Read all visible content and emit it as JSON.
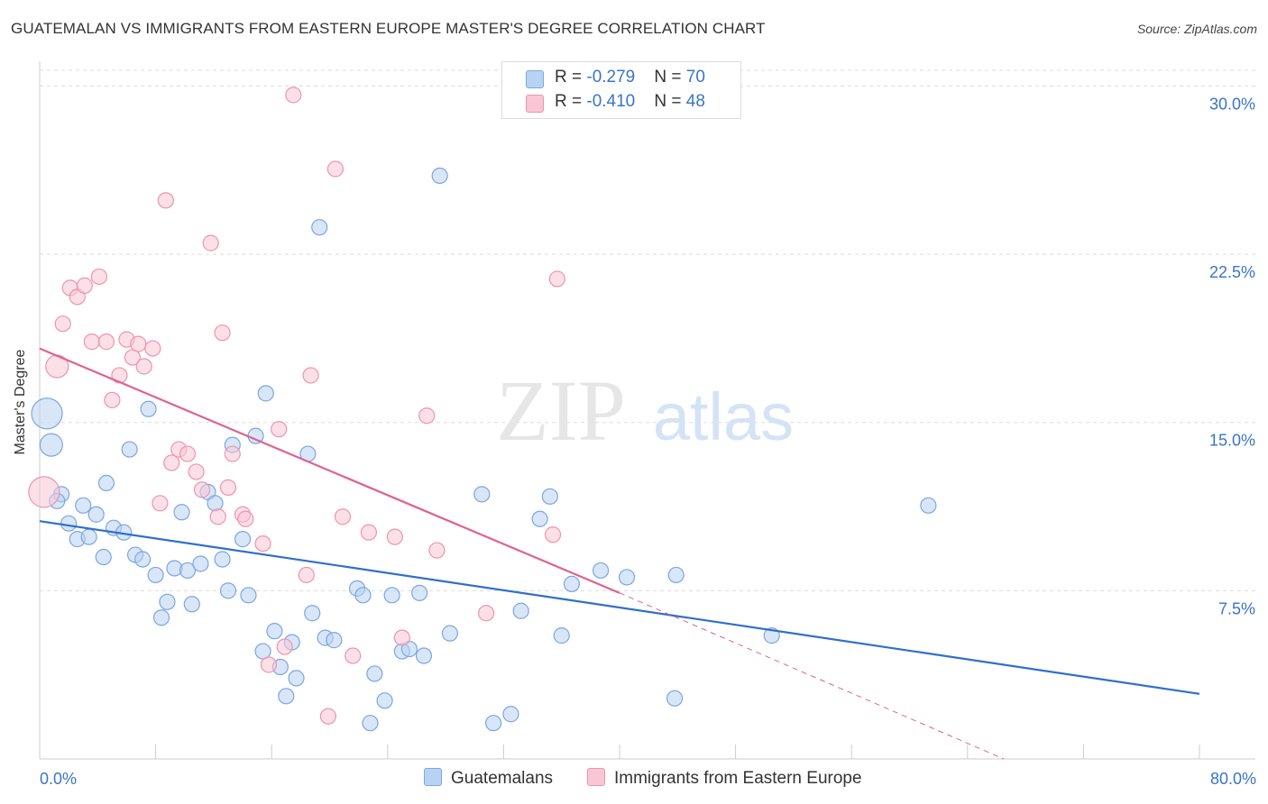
{
  "header": {
    "title": "GUATEMALAN VS IMMIGRANTS FROM EASTERN EUROPE MASTER'S DEGREE CORRELATION CHART",
    "source": "Source: ZipAtlas.com"
  },
  "watermark": {
    "zip": "ZIP",
    "atlas": "atlas"
  },
  "legend": {
    "rows": [
      {
        "r_label": "R = ",
        "r_value": "-0.279",
        "n_label": "N = ",
        "n_value": "70"
      },
      {
        "r_label": "R = ",
        "r_value": "-0.410",
        "n_label": "N = ",
        "n_value": "48"
      }
    ]
  },
  "colors": {
    "blue_fill": "#b8d2f3",
    "blue_stroke": "#7ba7e0",
    "blue_line": "#2e6fcf",
    "pink_fill": "#f9c6d6",
    "pink_stroke": "#ef93b0",
    "pink_line": "#e0628f",
    "grid": "#dcdcdc",
    "tick_text": "#3a74c8"
  },
  "chart_data": {
    "type": "scatter",
    "title": "GUATEMALAN VS IMMIGRANTS FROM EASTERN EUROPE MASTER'S DEGREE CORRELATION CHART",
    "ylabel": "Master's Degree",
    "xlabel": "",
    "xlim": [
      0,
      80
    ],
    "ylim": [
      0,
      30.7
    ],
    "x_ticks": [
      "0.0%",
      "80.0%"
    ],
    "y_ticks": [
      {
        "value": 7.5,
        "label": "7.5%"
      },
      {
        "value": 15.0,
        "label": "15.0%"
      },
      {
        "value": 22.5,
        "label": "22.5%"
      },
      {
        "value": 30.0,
        "label": "30.0%"
      }
    ],
    "grid": "horizontal dashed",
    "legend_position": "top-center",
    "series": [
      {
        "name": "Guatemalans",
        "color": "#7ba7e0",
        "trend": {
          "x": [
            0,
            80
          ],
          "y": [
            10.6,
            2.9
          ]
        },
        "points": [
          [
            0.5,
            15.4,
            3
          ],
          [
            0.8,
            14.0,
            2
          ],
          [
            1.5,
            11.8,
            1
          ],
          [
            1.2,
            11.5,
            1
          ],
          [
            2.0,
            10.5,
            1
          ],
          [
            2.6,
            9.8,
            1
          ],
          [
            3.0,
            11.3,
            1
          ],
          [
            3.4,
            9.9,
            1
          ],
          [
            3.9,
            10.9,
            1
          ],
          [
            4.4,
            9.0,
            1
          ],
          [
            4.6,
            12.3,
            1
          ],
          [
            5.1,
            10.3,
            1
          ],
          [
            5.8,
            10.1,
            1
          ],
          [
            6.2,
            13.8,
            1
          ],
          [
            6.6,
            9.1,
            1
          ],
          [
            7.1,
            8.9,
            1
          ],
          [
            7.5,
            15.6,
            1
          ],
          [
            8.0,
            8.2,
            1
          ],
          [
            8.4,
            6.3,
            1
          ],
          [
            8.8,
            7.0,
            1
          ],
          [
            9.3,
            8.5,
            1
          ],
          [
            9.8,
            11.0,
            1
          ],
          [
            10.2,
            8.4,
            1
          ],
          [
            10.5,
            6.9,
            1
          ],
          [
            11.1,
            8.7,
            1
          ],
          [
            11.6,
            11.9,
            1
          ],
          [
            12.1,
            11.4,
            1
          ],
          [
            12.6,
            8.9,
            1
          ],
          [
            13.0,
            7.5,
            1
          ],
          [
            13.3,
            14.0,
            1
          ],
          [
            14.0,
            9.8,
            1
          ],
          [
            14.4,
            7.3,
            1
          ],
          [
            14.9,
            14.4,
            1
          ],
          [
            15.4,
            4.8,
            1
          ],
          [
            15.6,
            16.3,
            1
          ],
          [
            16.2,
            5.7,
            1
          ],
          [
            16.6,
            4.1,
            1
          ],
          [
            17.0,
            2.8,
            1
          ],
          [
            17.4,
            5.2,
            1
          ],
          [
            17.7,
            3.6,
            1
          ],
          [
            18.5,
            13.6,
            1
          ],
          [
            18.8,
            6.5,
            1
          ],
          [
            19.3,
            23.7,
            1
          ],
          [
            19.7,
            5.4,
            1
          ],
          [
            20.3,
            5.3,
            1
          ],
          [
            21.9,
            7.6,
            1
          ],
          [
            22.3,
            7.3,
            1
          ],
          [
            22.8,
            1.6,
            1
          ],
          [
            23.1,
            3.8,
            1
          ],
          [
            23.8,
            2.6,
            1
          ],
          [
            24.3,
            7.3,
            1
          ],
          [
            25.0,
            4.8,
            1
          ],
          [
            25.5,
            4.9,
            1
          ],
          [
            26.2,
            7.4,
            1
          ],
          [
            26.5,
            4.6,
            1
          ],
          [
            27.6,
            26.0,
            1
          ],
          [
            28.3,
            5.6,
            1
          ],
          [
            30.5,
            11.8,
            1
          ],
          [
            31.3,
            1.6,
            1
          ],
          [
            32.5,
            2.0,
            1
          ],
          [
            33.2,
            6.6,
            1
          ],
          [
            34.5,
            10.7,
            1
          ],
          [
            35.2,
            11.7,
            1
          ],
          [
            36.0,
            5.5,
            1
          ],
          [
            36.7,
            7.8,
            1
          ],
          [
            38.7,
            8.4,
            1
          ],
          [
            40.5,
            8.1,
            1
          ],
          [
            43.8,
            2.7,
            1
          ],
          [
            43.9,
            8.2,
            1
          ],
          [
            50.5,
            5.5,
            1
          ],
          [
            61.3,
            11.3,
            1
          ]
        ]
      },
      {
        "name": "Immigrants from Eastern Europe",
        "color": "#ef93b0",
        "trend": {
          "x": [
            0,
            40.0
          ],
          "y": [
            18.3,
            7.4
          ]
        },
        "trend_dashed": {
          "x": [
            40.0,
            66.5
          ],
          "y": [
            7.4,
            0.0
          ]
        },
        "points": [
          [
            0.3,
            11.9,
            3
          ],
          [
            1.2,
            17.5,
            2
          ],
          [
            1.6,
            19.4,
            1
          ],
          [
            2.1,
            21.0,
            1
          ],
          [
            2.6,
            20.6,
            1
          ],
          [
            3.1,
            21.1,
            1
          ],
          [
            3.6,
            18.6,
            1
          ],
          [
            4.1,
            21.5,
            1
          ],
          [
            4.6,
            18.6,
            1
          ],
          [
            5.0,
            16.0,
            1
          ],
          [
            5.5,
            17.1,
            1
          ],
          [
            6.0,
            18.7,
            1
          ],
          [
            6.4,
            17.9,
            1
          ],
          [
            6.8,
            18.5,
            1
          ],
          [
            7.2,
            17.5,
            1
          ],
          [
            7.8,
            18.3,
            1
          ],
          [
            8.3,
            11.4,
            1
          ],
          [
            8.7,
            24.9,
            1
          ],
          [
            9.1,
            13.2,
            1
          ],
          [
            9.6,
            13.8,
            1
          ],
          [
            10.2,
            13.6,
            1
          ],
          [
            10.8,
            12.8,
            1
          ],
          [
            11.2,
            12.0,
            1
          ],
          [
            11.8,
            23.0,
            1
          ],
          [
            12.3,
            10.8,
            1
          ],
          [
            12.6,
            19.0,
            1
          ],
          [
            13.0,
            12.1,
            1
          ],
          [
            13.3,
            13.6,
            1
          ],
          [
            14.0,
            10.9,
            1
          ],
          [
            14.2,
            10.7,
            1
          ],
          [
            15.4,
            9.6,
            1
          ],
          [
            15.8,
            4.2,
            1
          ],
          [
            16.5,
            14.7,
            1
          ],
          [
            16.9,
            5.0,
            1
          ],
          [
            17.5,
            29.6,
            1
          ],
          [
            18.4,
            8.2,
            1
          ],
          [
            18.7,
            17.1,
            1
          ],
          [
            19.9,
            1.9,
            1
          ],
          [
            20.4,
            26.3,
            1
          ],
          [
            20.9,
            10.8,
            1
          ],
          [
            21.6,
            4.6,
            1
          ],
          [
            22.7,
            10.1,
            1
          ],
          [
            24.5,
            9.9,
            1
          ],
          [
            25.0,
            5.4,
            1
          ],
          [
            26.7,
            15.3,
            1
          ],
          [
            27.4,
            9.3,
            1
          ],
          [
            30.8,
            6.5,
            1
          ],
          [
            35.4,
            10.0,
            1
          ],
          [
            35.7,
            21.4,
            1
          ]
        ]
      }
    ]
  },
  "bottom_legend": {
    "blue_label": "Guatemalans",
    "pink_label": "Immigrants from Eastern Europe"
  }
}
